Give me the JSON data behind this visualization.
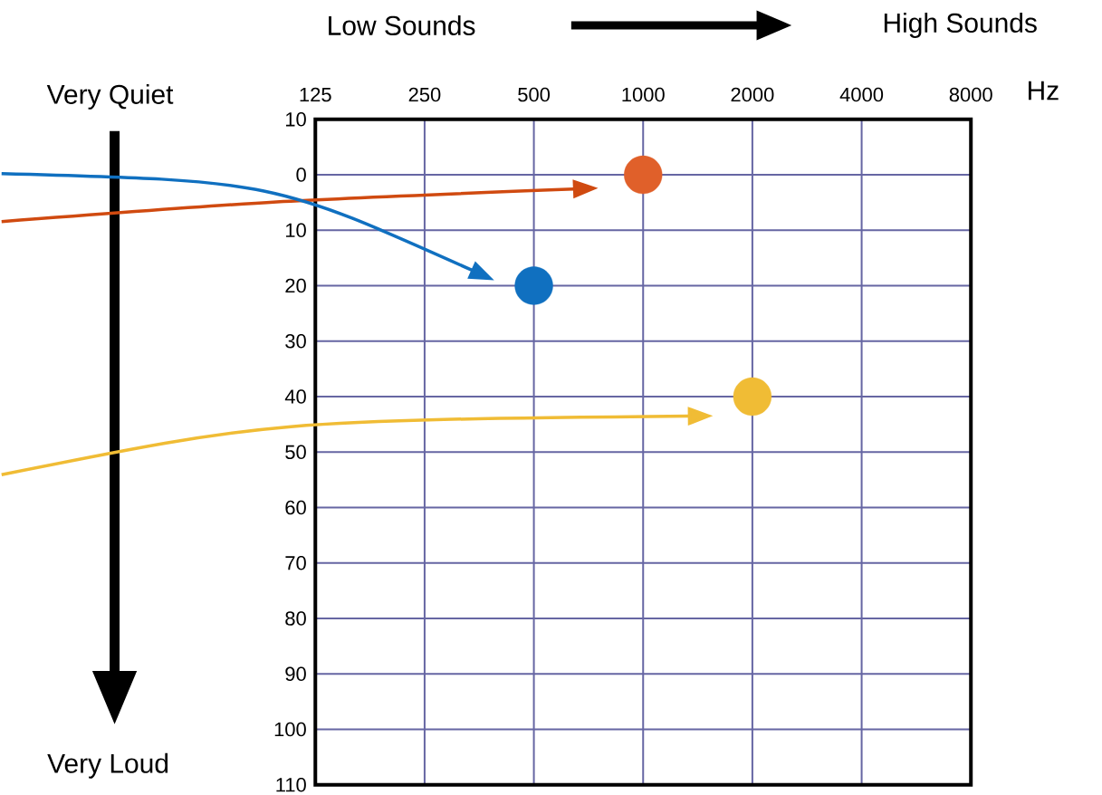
{
  "chart_data": {
    "type": "scatter",
    "xlabel": "Hz",
    "series": [
      {
        "x": [
          1000
        ],
        "values": [
          0
        ],
        "color": "#e0602a"
      },
      {
        "x": [
          500
        ],
        "values": [
          20
        ],
        "color": "#1070c0"
      },
      {
        "x": [
          2000
        ],
        "values": [
          40
        ],
        "color": "#f0bc35"
      }
    ],
    "log": "x",
    "xlim": [
      125,
      8000
    ],
    "xticks": [
      125,
      250,
      500,
      1000,
      2000,
      4000,
      8000
    ],
    "ylim": [
      110,
      -10
    ],
    "yticks": [
      {
        "value": -10,
        "label": "10"
      },
      0,
      10,
      20,
      30,
      40,
      50,
      60,
      70,
      80,
      90,
      100,
      110
    ],
    "grid": true,
    "annotations": [
      "Low Sounds",
      "High Sounds",
      "Very Quiet",
      "Very Loud"
    ]
  }
}
